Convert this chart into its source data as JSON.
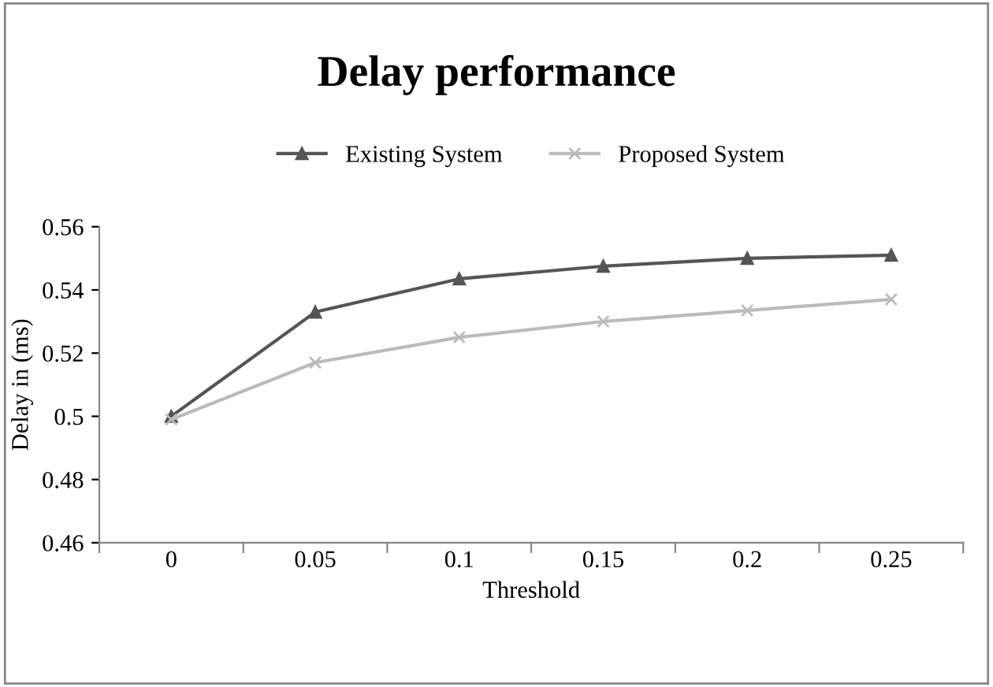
{
  "chart_data": {
    "type": "line",
    "title": "Delay performance",
    "xlabel": "Threshold",
    "ylabel": "Delay in (ms)",
    "categories": [
      "0",
      "0.05",
      "0.1",
      "0.15",
      "0.2",
      "0.25"
    ],
    "series": [
      {
        "name": "Existing System",
        "color": "#555555",
        "marker": "triangle",
        "values": [
          0.5,
          0.533,
          0.5435,
          0.5475,
          0.55,
          0.551
        ]
      },
      {
        "name": "Proposed System",
        "color": "#bbbbbb",
        "marker": "cross",
        "values": [
          0.499,
          0.517,
          0.525,
          0.53,
          0.5335,
          0.537
        ]
      }
    ],
    "ylim": [
      0.46,
      0.56
    ],
    "yticks": [
      0.46,
      0.48,
      0.5,
      0.52,
      0.54,
      0.56
    ],
    "grid": false,
    "legend": "top"
  }
}
